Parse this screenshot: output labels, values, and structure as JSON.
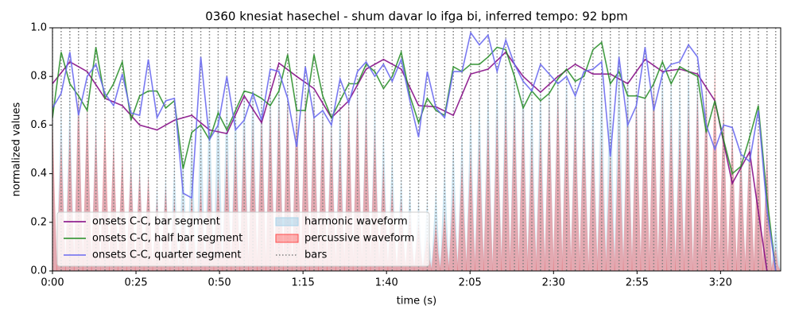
{
  "chart_data": {
    "type": "line",
    "title": "0360 knesiat hasechel - shum davar lo ifga bi, inferred tempo: 92 bpm",
    "xlabel": "time (s)",
    "ylabel": "normalized values",
    "xlim": [
      0,
      218
    ],
    "ylim": [
      0,
      1
    ],
    "xticks": [
      {
        "value": 0,
        "label": "0:00"
      },
      {
        "value": 25,
        "label": "0:25"
      },
      {
        "value": 50,
        "label": "0:50"
      },
      {
        "value": 75,
        "label": "1:15"
      },
      {
        "value": 100,
        "label": "1:40"
      },
      {
        "value": 125,
        "label": "2:05"
      },
      {
        "value": 150,
        "label": "2:30"
      },
      {
        "value": 175,
        "label": "2:55"
      },
      {
        "value": 200,
        "label": "3:20"
      }
    ],
    "yticks": [
      {
        "value": 0,
        "label": "0.0"
      },
      0.2,
      0.4,
      0.6,
      0.8,
      {
        "value": 1,
        "label": "1.0"
      }
    ],
    "legend": "lower left",
    "x": [
      0,
      2.6,
      5.2,
      7.8,
      10.4,
      13.0,
      15.7,
      18.3,
      20.9,
      23.5,
      26.1,
      28.7,
      31.3,
      33.9,
      36.5,
      39.1,
      41.7,
      44.4,
      47.0,
      49.6,
      52.2,
      54.8,
      57.4,
      60.0,
      62.6,
      65.2,
      67.8,
      70.4,
      73.1,
      75.7,
      78.3,
      80.9,
      83.5,
      86.1,
      88.7,
      91.3,
      93.9,
      96.5,
      99.1,
      101.7,
      104.4,
      107.0,
      109.6,
      112.2,
      114.8,
      117.4,
      120.0,
      122.6,
      125.2,
      127.8,
      130.4,
      133.1,
      135.7,
      138.3,
      140.9,
      143.5,
      146.1,
      148.7,
      151.3,
      153.9,
      156.5,
      159.1,
      161.8,
      164.4,
      167.0,
      169.6,
      172.2,
      174.8,
      177.4,
      180.0,
      182.6,
      185.2,
      187.8,
      190.4,
      193.1,
      195.7,
      198.3,
      200.9,
      203.5,
      206.1,
      208.7,
      211.3,
      213.9,
      216.5
    ],
    "series": [
      {
        "name": "onsets C-C, bar segment",
        "color": "#800080",
        "x": [
          0,
          5.2,
          10.4,
          15.7,
          20.9,
          26.1,
          31.3,
          36.5,
          41.7,
          47.0,
          52.2,
          57.4,
          62.6,
          67.8,
          73.1,
          78.3,
          83.5,
          88.7,
          93.9,
          99.1,
          104.4,
          109.6,
          114.8,
          120.0,
          125.2,
          130.4,
          135.7,
          140.9,
          146.1,
          151.3,
          156.5,
          161.8,
          167.0,
          172.2,
          177.4,
          182.6,
          187.8,
          193.1,
          198.3,
          203.5,
          208.7,
          213.9
        ],
        "values": [
          0.77,
          0.86,
          0.82,
          0.71,
          0.68,
          0.6,
          0.58,
          0.62,
          0.64,
          0.58,
          0.565,
          0.72,
          0.61,
          0.855,
          0.8,
          0.75,
          0.63,
          0.7,
          0.83,
          0.87,
          0.83,
          0.68,
          0.675,
          0.64,
          0.81,
          0.83,
          0.9,
          0.8,
          0.735,
          0.8,
          0.85,
          0.81,
          0.81,
          0.77,
          0.87,
          0.82,
          0.83,
          0.81,
          0.7,
          0.36,
          0.49,
          0.0
        ]
      },
      {
        "name": "onsets C-C, half bar segment",
        "color": "#228b22",
        "values": [
          0.63,
          0.9,
          0.77,
          0.72,
          0.66,
          0.92,
          0.71,
          0.77,
          0.86,
          0.62,
          0.72,
          0.74,
          0.74,
          0.67,
          0.7,
          0.42,
          0.57,
          0.6,
          0.54,
          0.65,
          0.58,
          0.66,
          0.74,
          0.73,
          0.71,
          0.68,
          0.74,
          0.89,
          0.66,
          0.66,
          0.89,
          0.72,
          0.63,
          0.7,
          0.77,
          0.77,
          0.85,
          0.82,
          0.75,
          0.8,
          0.9,
          0.72,
          0.61,
          0.71,
          0.66,
          0.64,
          0.84,
          0.82,
          0.85,
          0.85,
          0.88,
          0.92,
          0.91,
          0.8,
          0.67,
          0.74,
          0.7,
          0.73,
          0.79,
          0.83,
          0.78,
          0.8,
          0.91,
          0.94,
          0.77,
          0.82,
          0.72,
          0.72,
          0.71,
          0.77,
          0.86,
          0.77,
          0.84,
          0.82,
          0.8,
          0.57,
          0.7,
          0.54,
          0.4,
          0.43,
          0.55,
          0.68,
          0.3,
          0.0
        ]
      },
      {
        "name": "onsets C-C, quarter segment",
        "color": "#6a6af0",
        "values": [
          0.67,
          0.73,
          0.9,
          0.64,
          0.8,
          0.85,
          0.73,
          0.68,
          0.81,
          0.65,
          0.64,
          0.87,
          0.63,
          0.7,
          0.71,
          0.32,
          0.3,
          0.88,
          0.54,
          0.6,
          0.8,
          0.58,
          0.62,
          0.73,
          0.62,
          0.83,
          0.82,
          0.71,
          0.51,
          0.84,
          0.63,
          0.66,
          0.6,
          0.79,
          0.69,
          0.82,
          0.86,
          0.8,
          0.85,
          0.78,
          0.87,
          0.7,
          0.55,
          0.82,
          0.67,
          0.63,
          0.82,
          0.82,
          0.98,
          0.93,
          0.97,
          0.82,
          0.95,
          0.85,
          0.78,
          0.74,
          0.85,
          0.81,
          0.77,
          0.8,
          0.72,
          0.82,
          0.83,
          0.86,
          0.47,
          0.88,
          0.6,
          0.68,
          0.92,
          0.66,
          0.81,
          0.85,
          0.86,
          0.93,
          0.88,
          0.6,
          0.5,
          0.6,
          0.59,
          0.48,
          0.45,
          0.66,
          0.25,
          0.0
        ]
      }
    ],
    "waveforms": [
      {
        "name": "harmonic waveform",
        "color": "#a9d3ea",
        "values": [
          0.6,
          0.7,
          0.75,
          0.8,
          0.7,
          0.65,
          0.6,
          0.55,
          0.5,
          0.5,
          0.45,
          0.4,
          0.35,
          0.4,
          0.45,
          0.5,
          0.6,
          0.7,
          0.75,
          0.8,
          0.78,
          0.75,
          0.8,
          0.85,
          0.8,
          0.82,
          0.85,
          0.8,
          0.78,
          0.82,
          0.8,
          0.75,
          0.7,
          0.72,
          0.75,
          0.8,
          0.78,
          0.72,
          0.6,
          0.5,
          0.4,
          0.35,
          0.3,
          0.3,
          0.35,
          0.45,
          0.55,
          0.6,
          0.7,
          0.75,
          0.8,
          0.85,
          0.9,
          0.88,
          0.85,
          0.78,
          0.82,
          0.8,
          0.85,
          0.88,
          0.82,
          0.8,
          0.78,
          0.85,
          0.9,
          0.95,
          0.88,
          0.8,
          0.85,
          0.88,
          0.9,
          0.85,
          0.8,
          0.88,
          0.85,
          0.8,
          0.75,
          0.7,
          0.6,
          0.55,
          0.6,
          0.55,
          0.5,
          0.2
        ]
      },
      {
        "name": "percussive waveform",
        "color": "#ff4d4d",
        "values": [
          0.65,
          0.55,
          0.6,
          0.75,
          0.7,
          0.6,
          0.65,
          0.55,
          0.5,
          0.45,
          0.42,
          0.4,
          0.3,
          0.35,
          0.3,
          0.28,
          0.32,
          0.35,
          0.45,
          0.4,
          0.5,
          0.55,
          0.6,
          0.62,
          0.65,
          0.68,
          0.7,
          0.72,
          0.7,
          0.75,
          0.7,
          0.65,
          0.6,
          0.55,
          0.7,
          0.72,
          0.68,
          0.6,
          0.45,
          0.35,
          0.3,
          0.25,
          0.2,
          0.15,
          0.2,
          0.25,
          0.35,
          0.45,
          0.5,
          0.55,
          0.62,
          0.66,
          0.7,
          0.7,
          0.68,
          0.55,
          0.6,
          0.7,
          0.75,
          0.72,
          0.68,
          0.65,
          0.6,
          0.55,
          0.5,
          0.6,
          0.68,
          0.72,
          0.75,
          0.8,
          0.72,
          0.65,
          0.6,
          0.7,
          0.75,
          0.78,
          0.85,
          0.7,
          0.6,
          0.5,
          0.55,
          0.6,
          0.5,
          0.1
        ]
      }
    ],
    "bars": {
      "name": "bars",
      "color": "#808080"
    }
  }
}
